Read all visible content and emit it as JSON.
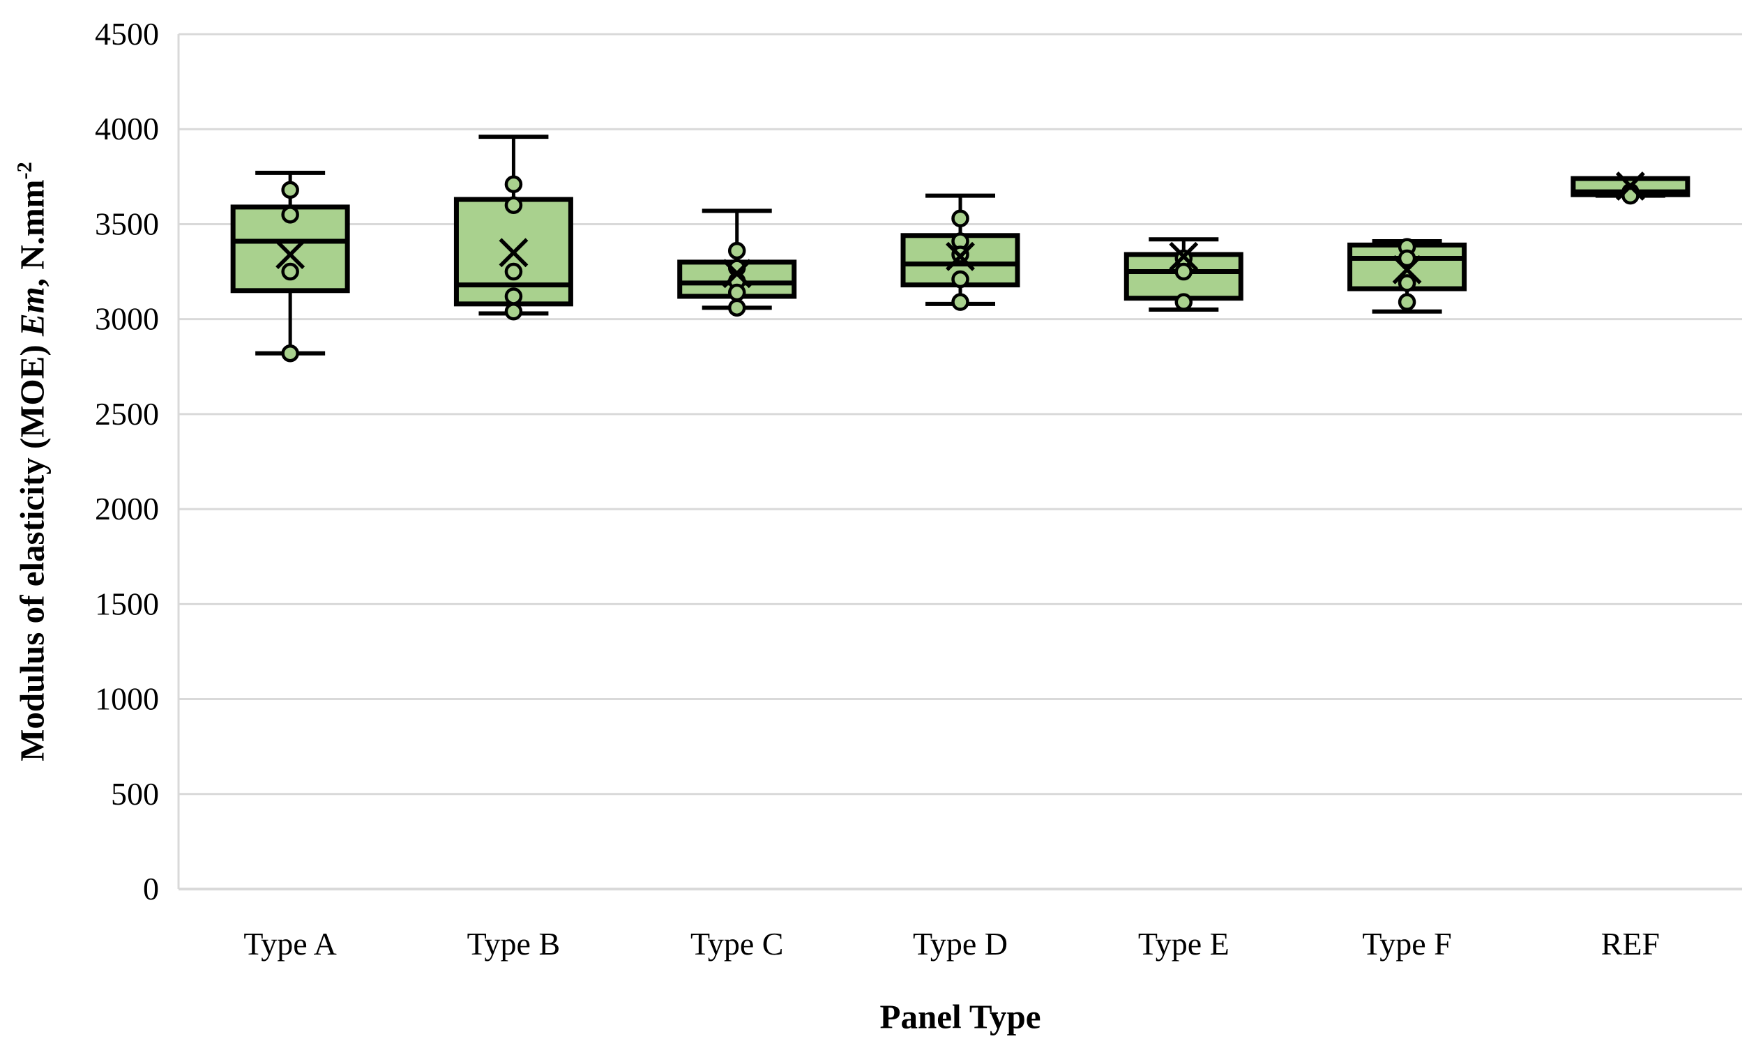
{
  "figure": {
    "y_axis": {
      "title_prefix": "Modulus of elasticity (MOE) ",
      "title_em": "Em",
      "title_suffix": ", N.mm",
      "title_superscript": "-2"
    },
    "x_axis": {
      "title": "Panel Type"
    }
  },
  "chart_data": {
    "type": "boxplot",
    "title": "",
    "xlabel": "Panel Type",
    "ylabel": "Modulus of elasticity (MOE) Em, N.mm-2",
    "ylim": [
      0,
      4500
    ],
    "ytick_step": 500,
    "ytick_labels": [
      "0",
      "500",
      "1000",
      "1500",
      "2000",
      "2500",
      "3000",
      "3500",
      "4000",
      "4500"
    ],
    "grid": "horizontal-only",
    "legend": "none",
    "categories": [
      "Type A",
      "Type B",
      "Type C",
      "Type D",
      "Type E",
      "Type F",
      "REF"
    ],
    "series": [
      {
        "category": "Type A",
        "min": 2820,
        "q1": 3150,
        "median": 3410,
        "q3": 3590,
        "max": 3770,
        "mean": 3340,
        "points": [
          3680,
          3550,
          3250,
          2820
        ]
      },
      {
        "category": "Type B",
        "min": 3030,
        "q1": 3080,
        "median": 3180,
        "q3": 3630,
        "max": 3960,
        "mean": 3350,
        "points": [
          3710,
          3600,
          3250,
          3120,
          3040
        ]
      },
      {
        "category": "Type C",
        "min": 3060,
        "q1": 3120,
        "median": 3190,
        "q3": 3300,
        "max": 3570,
        "mean": 3240,
        "points": [
          3360,
          3270,
          3200,
          3140,
          3060
        ]
      },
      {
        "category": "Type D",
        "min": 3080,
        "q1": 3180,
        "median": 3290,
        "q3": 3440,
        "max": 3650,
        "mean": 3330,
        "points": [
          3530,
          3410,
          3340,
          3210,
          3090
        ]
      },
      {
        "category": "Type E",
        "min": 3050,
        "q1": 3110,
        "median": 3250,
        "q3": 3340,
        "max": 3420,
        "mean": 3330,
        "points": [
          3320,
          3250,
          3090
        ]
      },
      {
        "category": "Type F",
        "min": 3040,
        "q1": 3160,
        "median": 3320,
        "q3": 3390,
        "max": 3410,
        "mean": 3260,
        "points": [
          3380,
          3320,
          3190,
          3090
        ]
      },
      {
        "category": "REF",
        "min": 3650,
        "q1": 3655,
        "median": 3670,
        "q3": 3740,
        "max": 3740,
        "mean": 3700,
        "points": [
          3670,
          3650
        ]
      }
    ],
    "colors": {
      "box_fill": "#a9d18e",
      "box_border": "#000000",
      "marker_fill": "#a9d18e",
      "marker_border": "#000000",
      "mean_marker": "#000000",
      "gridline": "#d9d9d9",
      "axis_line": "#d9d9d9",
      "text": "#000000"
    }
  }
}
